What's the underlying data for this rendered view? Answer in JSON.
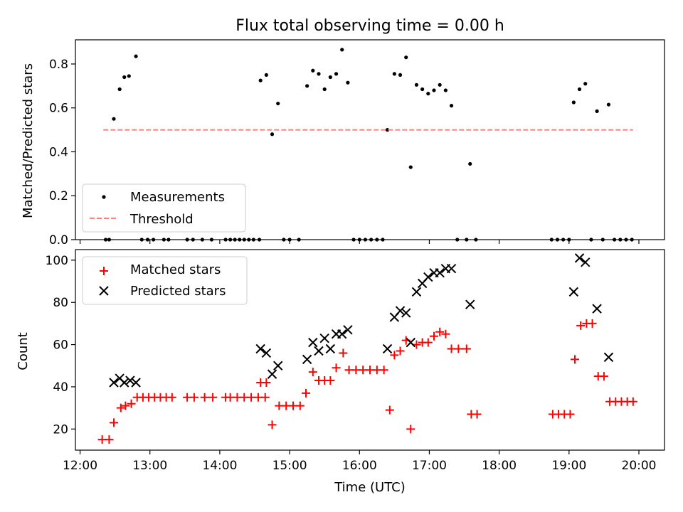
{
  "chart_data": [
    {
      "type": "scatter",
      "title": "Flux total observing time = 0.00 h",
      "xlabel": "",
      "ylabel": "Matched/Predicted stars",
      "ylim": [
        0,
        0.91
      ],
      "yticks": [
        0.0,
        0.2,
        0.4,
        0.6,
        0.8
      ],
      "ytick_labels": [
        "0.0",
        "0.2",
        "0.4",
        "0.6",
        "0.8"
      ],
      "xlim": [
        "11:56",
        "20:22"
      ],
      "legend": {
        "position": "lower-left",
        "entries": [
          "Measurements",
          "Threshold"
        ]
      },
      "series": [
        {
          "name": "Measurements",
          "marker": "dot",
          "color": "#000000",
          "points": [
            [
              "12:22",
              0
            ],
            [
              "12:25",
              0
            ],
            [
              "12:29",
              0.55
            ],
            [
              "12:34",
              0.685
            ],
            [
              "12:38",
              0.74
            ],
            [
              "12:42",
              0.745
            ],
            [
              "12:48",
              0.835
            ],
            [
              "12:53",
              0
            ],
            [
              "12:58",
              0
            ],
            [
              "13:03",
              0
            ],
            [
              "13:12",
              0
            ],
            [
              "13:16",
              0
            ],
            [
              "13:32",
              0
            ],
            [
              "13:37",
              0
            ],
            [
              "13:45",
              0
            ],
            [
              "13:53",
              0
            ],
            [
              "14:05",
              0
            ],
            [
              "14:09",
              0
            ],
            [
              "14:13",
              0
            ],
            [
              "14:17",
              0
            ],
            [
              "14:21",
              0
            ],
            [
              "14:25",
              0
            ],
            [
              "14:29",
              0
            ],
            [
              "14:34",
              0
            ],
            [
              "14:35",
              0.725
            ],
            [
              "14:40",
              0.75
            ],
            [
              "14:45",
              0.48
            ],
            [
              "14:50",
              0.62
            ],
            [
              "14:55",
              0
            ],
            [
              "15:00",
              0
            ],
            [
              "15:08",
              0
            ],
            [
              "15:15",
              0.7
            ],
            [
              "15:20",
              0.77
            ],
            [
              "15:25",
              0.755
            ],
            [
              "15:30",
              0.685
            ],
            [
              "15:35",
              0.74
            ],
            [
              "15:40",
              0.755
            ],
            [
              "15:45",
              0.865
            ],
            [
              "15:50",
              0.715
            ],
            [
              "15:55",
              0
            ],
            [
              "16:00",
              0
            ],
            [
              "16:05",
              0
            ],
            [
              "16:10",
              0
            ],
            [
              "16:15",
              0
            ],
            [
              "16:20",
              0
            ],
            [
              "16:24",
              0.5
            ],
            [
              "16:30",
              0.755
            ],
            [
              "16:35",
              0.75
            ],
            [
              "16:40",
              0.83
            ],
            [
              "16:44",
              0.33
            ],
            [
              "16:49",
              0.705
            ],
            [
              "16:54",
              0.685
            ],
            [
              "16:59",
              0.665
            ],
            [
              "17:04",
              0.68
            ],
            [
              "17:09",
              0.705
            ],
            [
              "17:14",
              0.68
            ],
            [
              "17:19",
              0.61
            ],
            [
              "17:24",
              0
            ],
            [
              "17:32",
              0
            ],
            [
              "17:35",
              0.345
            ],
            [
              "17:40",
              0
            ],
            [
              "18:45",
              0
            ],
            [
              "18:50",
              0
            ],
            [
              "18:55",
              0
            ],
            [
              "19:00",
              0
            ],
            [
              "19:04",
              0.625
            ],
            [
              "19:09",
              0.685
            ],
            [
              "19:14",
              0.71
            ],
            [
              "19:19",
              0
            ],
            [
              "19:24",
              0.585
            ],
            [
              "19:29",
              0
            ],
            [
              "19:34",
              0.615
            ],
            [
              "19:39",
              0
            ],
            [
              "19:44",
              0
            ],
            [
              "19:49",
              0
            ],
            [
              "19:54",
              0
            ]
          ]
        },
        {
          "name": "Threshold",
          "type": "line",
          "style": "dashed",
          "color": "#ff7f7f",
          "points": [
            [
              "12:20",
              0.5
            ],
            [
              "19:55",
              0.5
            ]
          ]
        }
      ]
    },
    {
      "type": "scatter",
      "title": "",
      "xlabel": "Time (UTC)",
      "ylabel": "Count",
      "ylim": [
        10,
        105
      ],
      "yticks": [
        20,
        40,
        60,
        80,
        100
      ],
      "ytick_labels": [
        "20",
        "40",
        "60",
        "80",
        "100"
      ],
      "xlim": [
        "11:56",
        "20:22"
      ],
      "xticks": [
        "12:00",
        "13:00",
        "14:00",
        "15:00",
        "16:00",
        "17:00",
        "18:00",
        "19:00",
        "20:00"
      ],
      "xtick_labels": [
        "12:00",
        "13:00",
        "14:00",
        "15:00",
        "16:00",
        "17:00",
        "18:00",
        "19:00",
        "20:00"
      ],
      "legend": {
        "position": "top-left",
        "entries": [
          "Matched stars",
          "Predicted stars"
        ]
      },
      "series": [
        {
          "name": "Matched stars",
          "marker": "plus",
          "color": "#ff0000",
          "points": [
            [
              "12:19",
              15
            ],
            [
              "12:25",
              15
            ],
            [
              "12:29",
              23
            ],
            [
              "12:35",
              30
            ],
            [
              "12:39",
              31
            ],
            [
              "12:44",
              32
            ],
            [
              "12:49",
              35
            ],
            [
              "12:54",
              35
            ],
            [
              "12:59",
              35
            ],
            [
              "13:04",
              35
            ],
            [
              "13:09",
              35
            ],
            [
              "13:14",
              35
            ],
            [
              "13:19",
              35
            ],
            [
              "13:32",
              35
            ],
            [
              "13:38",
              35
            ],
            [
              "13:47",
              35
            ],
            [
              "13:54",
              35
            ],
            [
              "14:05",
              35
            ],
            [
              "14:09",
              35
            ],
            [
              "14:15",
              35
            ],
            [
              "14:21",
              35
            ],
            [
              "14:27",
              35
            ],
            [
              "14:33",
              35
            ],
            [
              "14:39",
              35
            ],
            [
              "14:35",
              42
            ],
            [
              "14:40",
              42
            ],
            [
              "14:45",
              22
            ],
            [
              "14:51",
              31
            ],
            [
              "14:57",
              31
            ],
            [
              "15:03",
              31
            ],
            [
              "15:09",
              31
            ],
            [
              "15:14",
              37
            ],
            [
              "15:20",
              47
            ],
            [
              "15:25",
              43
            ],
            [
              "15:30",
              43
            ],
            [
              "15:35",
              43
            ],
            [
              "15:40",
              49
            ],
            [
              "15:46",
              56
            ],
            [
              "15:51",
              48
            ],
            [
              "15:57",
              48
            ],
            [
              "16:03",
              48
            ],
            [
              "16:09",
              48
            ],
            [
              "16:15",
              48
            ],
            [
              "16:21",
              48
            ],
            [
              "16:26",
              29
            ],
            [
              "16:30",
              55
            ],
            [
              "16:35",
              57
            ],
            [
              "16:40",
              62
            ],
            [
              "16:44",
              20
            ],
            [
              "16:49",
              60
            ],
            [
              "16:54",
              61
            ],
            [
              "16:59",
              61
            ],
            [
              "17:04",
              64
            ],
            [
              "17:09",
              66
            ],
            [
              "17:14",
              65
            ],
            [
              "17:19",
              58
            ],
            [
              "17:25",
              58
            ],
            [
              "17:32",
              58
            ],
            [
              "17:36",
              27
            ],
            [
              "17:41",
              27
            ],
            [
              "18:46",
              27
            ],
            [
              "18:51",
              27
            ],
            [
              "18:56",
              27
            ],
            [
              "19:01",
              27
            ],
            [
              "19:05",
              53
            ],
            [
              "19:10",
              69
            ],
            [
              "19:15",
              70
            ],
            [
              "19:20",
              70
            ],
            [
              "19:25",
              45
            ],
            [
              "19:30",
              45
            ],
            [
              "19:35",
              33
            ],
            [
              "19:40",
              33
            ],
            [
              "19:45",
              33
            ],
            [
              "19:50",
              33
            ],
            [
              "19:55",
              33
            ]
          ]
        },
        {
          "name": "Predicted stars",
          "marker": "x",
          "color": "#000000",
          "points": [
            [
              "12:29",
              42
            ],
            [
              "12:34",
              44
            ],
            [
              "12:38",
              42
            ],
            [
              "12:43",
              43
            ],
            [
              "12:48",
              42
            ],
            [
              "14:35",
              58
            ],
            [
              "14:40",
              56
            ],
            [
              "14:45",
              46
            ],
            [
              "14:50",
              50
            ],
            [
              "15:15",
              53
            ],
            [
              "15:20",
              61
            ],
            [
              "15:25",
              57
            ],
            [
              "15:30",
              63
            ],
            [
              "15:35",
              58
            ],
            [
              "15:40",
              65
            ],
            [
              "15:45",
              65
            ],
            [
              "15:50",
              67
            ],
            [
              "16:24",
              58
            ],
            [
              "16:30",
              73
            ],
            [
              "16:35",
              76
            ],
            [
              "16:40",
              75
            ],
            [
              "16:44",
              61
            ],
            [
              "16:49",
              85
            ],
            [
              "16:54",
              89
            ],
            [
              "16:59",
              92
            ],
            [
              "17:04",
              94
            ],
            [
              "17:09",
              94
            ],
            [
              "17:14",
              96
            ],
            [
              "17:19",
              96
            ],
            [
              "17:35",
              79
            ],
            [
              "19:04",
              85
            ],
            [
              "19:09",
              101
            ],
            [
              "19:14",
              99
            ],
            [
              "19:24",
              77
            ],
            [
              "19:34",
              54
            ]
          ]
        }
      ]
    }
  ]
}
